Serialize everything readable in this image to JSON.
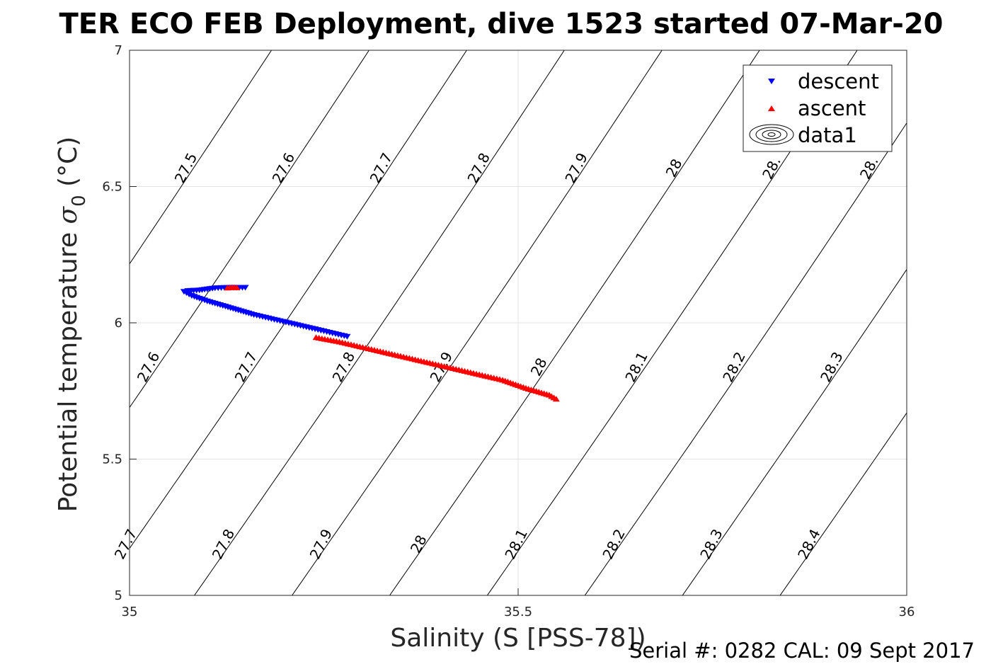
{
  "chart_data": {
    "type": "scatter",
    "title": "TER ECO FEB Deployment, dive 1523 started 07-Mar-20",
    "xlabel": "Salinity (S [PSS-78])",
    "ylabel_main": "Potential temperature ",
    "ylabel_sigma": "σ",
    "ylabel_sub": "0",
    "ylabel_unit": " (°C)",
    "xlim": [
      35,
      36
    ],
    "ylim": [
      5,
      7
    ],
    "x_ticks": [
      35,
      35.5,
      36
    ],
    "x_tick_labels": [
      "35",
      "35.5",
      "36"
    ],
    "y_ticks": [
      5,
      5.5,
      6,
      6.5,
      7
    ],
    "y_tick_labels": [
      "5",
      "5.5",
      "6",
      "6.5",
      "7"
    ],
    "grid": true,
    "legend_position": "top-right",
    "legend": [
      {
        "label": "descent",
        "marker": "triangle-down",
        "color": "#0000ff"
      },
      {
        "label": "ascent",
        "marker": "triangle-up",
        "color": "#ff0000"
      },
      {
        "label": "data1",
        "marker": "contour-ellipses",
        "color": "#000000"
      }
    ],
    "series": [
      {
        "name": "descent",
        "color": "#0000ff",
        "x": [
          35.149,
          35.13,
          35.11,
          35.09,
          35.075,
          35.07,
          35.08,
          35.1,
          35.13,
          35.16,
          35.19,
          35.22,
          35.25,
          35.28
        ],
        "y": [
          6.13,
          6.13,
          6.128,
          6.12,
          6.118,
          6.115,
          6.1,
          6.08,
          6.055,
          6.03,
          6.01,
          5.99,
          5.97,
          5.95
        ]
      },
      {
        "name": "ascent",
        "color": "#ff0000",
        "x": [
          35.24,
          35.27,
          35.3,
          35.33,
          35.36,
          35.39,
          35.42,
          35.45,
          35.48,
          35.51,
          35.54,
          35.549
        ],
        "y": [
          5.946,
          5.93,
          5.91,
          5.89,
          5.87,
          5.85,
          5.83,
          5.81,
          5.79,
          5.76,
          5.735,
          5.72
        ]
      },
      {
        "name": "ascent-top",
        "color": "#ff0000",
        "x": [
          35.126,
          35.132,
          35.138
        ],
        "y": [
          6.128,
          6.13,
          6.129
        ]
      }
    ],
    "contours": {
      "name": "data1",
      "levels": [
        27.5,
        27.6,
        27.7,
        27.8,
        27.9,
        28,
        28.1,
        28.2,
        28.3,
        28.4
      ],
      "labels_upper": [
        {
          "level": 27.5,
          "text": "27.5"
        },
        {
          "level": 27.6,
          "text": "27.6"
        },
        {
          "level": 27.7,
          "text": "27.7"
        },
        {
          "level": 27.8,
          "text": "27.8"
        },
        {
          "level": 27.9,
          "text": "27.9"
        },
        {
          "level": 28,
          "text": "28"
        },
        {
          "level": 28.1,
          "text": "28."
        },
        {
          "level": 28.2,
          "text": "28."
        }
      ],
      "labels_middle": [
        {
          "level": 27.6,
          "text": "27.6"
        },
        {
          "level": 27.7,
          "text": "27.7"
        },
        {
          "level": 27.8,
          "text": "27.8"
        },
        {
          "level": 27.9,
          "text": "27.9"
        },
        {
          "level": 28,
          "text": "28"
        },
        {
          "level": 28.1,
          "text": "28.1"
        },
        {
          "level": 28.2,
          "text": "28.2"
        },
        {
          "level": 28.3,
          "text": "28.3"
        }
      ],
      "labels_lower": [
        {
          "level": 27.7,
          "text": "27.7"
        },
        {
          "level": 27.8,
          "text": "27.8"
        },
        {
          "level": 27.9,
          "text": "27.9"
        },
        {
          "level": 28,
          "text": "28"
        },
        {
          "level": 28.1,
          "text": "28.1"
        },
        {
          "level": 28.2,
          "text": "28.2"
        },
        {
          "level": 28.3,
          "text": "28.3"
        },
        {
          "level": 28.4,
          "text": "28.4"
        }
      ]
    }
  },
  "footer": "Serial #: 0282  CAL: 09 Sept 2017"
}
